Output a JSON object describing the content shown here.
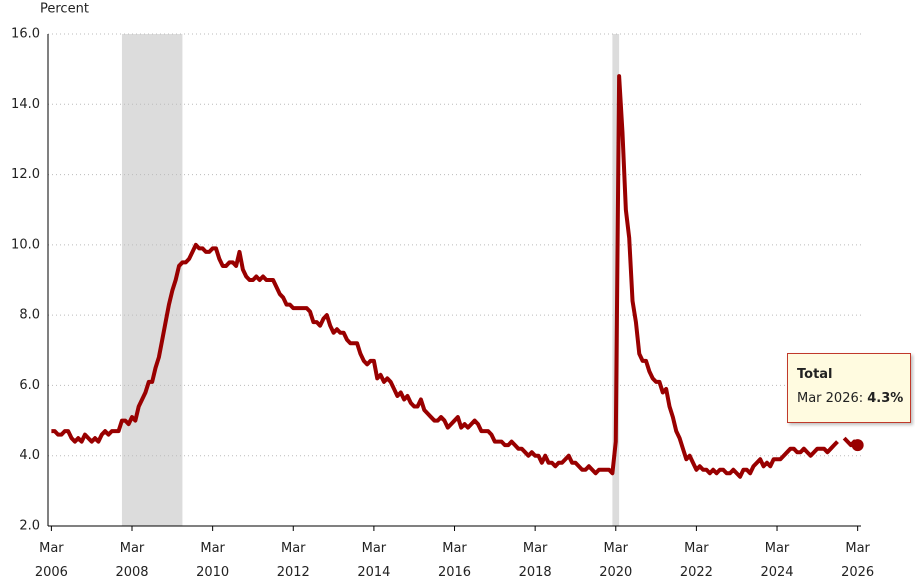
{
  "chart_data": {
    "type": "line",
    "y_label": "Percent",
    "x": [
      2006.167,
      2006.25,
      2006.333,
      2006.417,
      2006.5,
      2006.583,
      2006.667,
      2006.75,
      2006.833,
      2006.917,
      2007,
      2007.083,
      2007.167,
      2007.25,
      2007.333,
      2007.417,
      2007.5,
      2007.583,
      2007.667,
      2007.75,
      2007.833,
      2007.917,
      2008,
      2008.083,
      2008.167,
      2008.25,
      2008.333,
      2008.417,
      2008.5,
      2008.583,
      2008.667,
      2008.75,
      2008.833,
      2008.917,
      2009,
      2009.083,
      2009.167,
      2009.25,
      2009.333,
      2009.417,
      2009.5,
      2009.583,
      2009.667,
      2009.75,
      2009.833,
      2009.917,
      2010,
      2010.083,
      2010.167,
      2010.25,
      2010.333,
      2010.417,
      2010.5,
      2010.583,
      2010.667,
      2010.75,
      2010.833,
      2010.917,
      2011,
      2011.083,
      2011.167,
      2011.25,
      2011.333,
      2011.417,
      2011.5,
      2011.583,
      2011.667,
      2011.75,
      2011.833,
      2011.917,
      2012,
      2012.083,
      2012.167,
      2012.25,
      2012.333,
      2012.417,
      2012.5,
      2012.583,
      2012.667,
      2012.75,
      2012.833,
      2012.917,
      2013,
      2013.083,
      2013.167,
      2013.25,
      2013.333,
      2013.417,
      2013.5,
      2013.583,
      2013.667,
      2013.75,
      2013.833,
      2013.917,
      2014,
      2014.083,
      2014.167,
      2014.25,
      2014.333,
      2014.417,
      2014.5,
      2014.583,
      2014.667,
      2014.75,
      2014.833,
      2014.917,
      2015,
      2015.083,
      2015.167,
      2015.25,
      2015.333,
      2015.417,
      2015.5,
      2015.583,
      2015.667,
      2015.75,
      2015.833,
      2015.917,
      2016,
      2016.083,
      2016.167,
      2016.25,
      2016.333,
      2016.417,
      2016.5,
      2016.583,
      2016.667,
      2016.75,
      2016.833,
      2016.917,
      2017,
      2017.083,
      2017.167,
      2017.25,
      2017.333,
      2017.417,
      2017.5,
      2017.583,
      2017.667,
      2017.75,
      2017.833,
      2017.917,
      2018,
      2018.083,
      2018.167,
      2018.25,
      2018.333,
      2018.417,
      2018.5,
      2018.583,
      2018.667,
      2018.75,
      2018.833,
      2018.917,
      2019,
      2019.083,
      2019.167,
      2019.25,
      2019.333,
      2019.417,
      2019.5,
      2019.583,
      2019.667,
      2019.75,
      2019.833,
      2019.917,
      2020,
      2020.083,
      2020.167,
      2020.25,
      2020.333,
      2020.417,
      2020.5,
      2020.583,
      2020.667,
      2020.75,
      2020.833,
      2020.917,
      2021,
      2021.083,
      2021.167,
      2021.25,
      2021.333,
      2021.417,
      2021.5,
      2021.583,
      2021.667,
      2021.75,
      2021.833,
      2021.917,
      2022,
      2022.083,
      2022.167,
      2022.25,
      2022.333,
      2022.417,
      2022.5,
      2022.583,
      2022.667,
      2022.75,
      2022.833,
      2022.917,
      2023,
      2023.083,
      2023.167,
      2023.25,
      2023.333,
      2023.417,
      2023.5,
      2023.583,
      2023.667,
      2023.75,
      2023.833,
      2023.917,
      2024,
      2024.083,
      2024.167,
      2024.25,
      2024.333,
      2024.417,
      2024.5,
      2024.583,
      2024.667,
      2024.75,
      2024.833,
      2024.917,
      2025,
      2025.083,
      2025.167,
      2025.25,
      2025.333,
      2025.417,
      2025.5,
      2025.583,
      2025.667,
      2025.75,
      2025.833,
      2025.917,
      2026,
      2026.083,
      2026.167
    ],
    "series": [
      {
        "name": "Total",
        "color": "#990000",
        "values": [
          4.7,
          4.7,
          4.6,
          4.6,
          4.7,
          4.7,
          4.5,
          4.4,
          4.5,
          4.4,
          4.6,
          4.5,
          4.4,
          4.5,
          4.4,
          4.6,
          4.7,
          4.6,
          4.7,
          4.7,
          4.7,
          5.0,
          5.0,
          4.9,
          5.1,
          5.0,
          5.4,
          5.6,
          5.8,
          6.1,
          6.1,
          6.5,
          6.8,
          7.3,
          7.8,
          8.3,
          8.7,
          9.0,
          9.4,
          9.5,
          9.5,
          9.6,
          9.8,
          10.0,
          9.9,
          9.9,
          9.8,
          9.8,
          9.9,
          9.9,
          9.6,
          9.4,
          9.4,
          9.5,
          9.5,
          9.4,
          9.8,
          9.3,
          9.1,
          9.0,
          9.0,
          9.1,
          9.0,
          9.1,
          9.0,
          9.0,
          9.0,
          8.8,
          8.6,
          8.5,
          8.3,
          8.3,
          8.2,
          8.2,
          8.2,
          8.2,
          8.2,
          8.1,
          7.8,
          7.8,
          7.7,
          7.9,
          8.0,
          7.7,
          7.5,
          7.6,
          7.5,
          7.5,
          7.3,
          7.2,
          7.2,
          7.2,
          6.9,
          6.7,
          6.6,
          6.7,
          6.7,
          6.2,
          6.3,
          6.1,
          6.2,
          6.1,
          5.9,
          5.7,
          5.8,
          5.6,
          5.7,
          5.5,
          5.4,
          5.4,
          5.6,
          5.3,
          5.2,
          5.1,
          5.0,
          5.0,
          5.1,
          5.0,
          4.8,
          4.9,
          5.0,
          5.1,
          4.8,
          4.9,
          4.8,
          4.9,
          5.0,
          4.9,
          4.7,
          4.7,
          4.7,
          4.6,
          4.4,
          4.4,
          4.4,
          4.3,
          4.3,
          4.4,
          4.3,
          4.2,
          4.2,
          4.1,
          4.0,
          4.1,
          4.0,
          4.0,
          3.8,
          4.0,
          3.8,
          3.8,
          3.7,
          3.8,
          3.8,
          3.9,
          4.0,
          3.8,
          3.8,
          3.7,
          3.6,
          3.6,
          3.7,
          3.6,
          3.5,
          3.6,
          3.6,
          3.6,
          3.6,
          3.5,
          4.4,
          14.8,
          13.2,
          11.0,
          10.2,
          8.4,
          7.8,
          6.9,
          6.7,
          6.7,
          6.4,
          6.2,
          6.1,
          6.1,
          5.8,
          5.9,
          5.4,
          5.1,
          4.7,
          4.5,
          4.2,
          3.9,
          4.0,
          3.8,
          3.6,
          3.7,
          3.6,
          3.6,
          3.5,
          3.6,
          3.5,
          3.6,
          3.6,
          3.5,
          3.5,
          3.6,
          3.5,
          3.4,
          3.6,
          3.6,
          3.5,
          3.7,
          3.8,
          3.9,
          3.7,
          3.8,
          3.7,
          3.9,
          3.9,
          3.9,
          4.0,
          4.1,
          4.2,
          4.2,
          4.1,
          4.1,
          4.2,
          4.1,
          4.0,
          4.1,
          4.2,
          4.2,
          4.2,
          4.1,
          4.2,
          4.3,
          4.4,
          null,
          4.5,
          4.4,
          4.3,
          4.4,
          4.3
        ]
      }
    ],
    "xlim": [
      2006.083,
      2026.25
    ],
    "xticks": [
      {
        "value": 2006.167,
        "label": "Mar 2006"
      },
      {
        "value": 2008.167,
        "label": "Mar 2008"
      },
      {
        "value": 2010.167,
        "label": "Mar 2010"
      },
      {
        "value": 2012.167,
        "label": "Mar 2012"
      },
      {
        "value": 2014.167,
        "label": "Mar 2014"
      },
      {
        "value": 2016.167,
        "label": "Mar 2016"
      },
      {
        "value": 2018.167,
        "label": "Mar 2018"
      },
      {
        "value": 2020.167,
        "label": "Mar 2020"
      },
      {
        "value": 2022.167,
        "label": "Mar 2022"
      },
      {
        "value": 2024.167,
        "label": "Mar 2024"
      },
      {
        "value": 2026.167,
        "label": "Mar 2026"
      }
    ],
    "ylim": [
      2,
      16
    ],
    "yticks": [
      {
        "value": 2,
        "label": "2.0"
      },
      {
        "value": 4,
        "label": "4.0"
      },
      {
        "value": 6,
        "label": "6.0"
      },
      {
        "value": 8,
        "label": "8.0"
      },
      {
        "value": 10,
        "label": "10.0"
      },
      {
        "value": 12,
        "label": "12.0"
      },
      {
        "value": 14,
        "label": "14.0"
      },
      {
        "value": 16,
        "label": "16.0"
      }
    ],
    "grid": true,
    "shaded_periods": [
      [
        2007.917,
        2009.417
      ],
      [
        2020.083,
        2020.25
      ]
    ],
    "shade_color": "#dcdcdc",
    "tooltip": {
      "label": "Mar 2026:",
      "value_label": "4.3%"
    }
  }
}
